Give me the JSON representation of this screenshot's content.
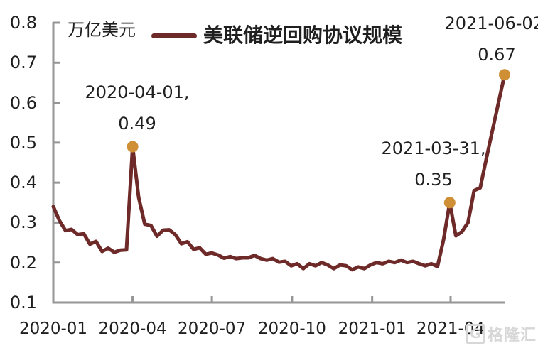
{
  "unit_label": "万亿美元",
  "legend": {
    "series_label": "美联储逆回购协议规模"
  },
  "annotations": [
    {
      "date": "2020-04-01,",
      "value": "0.49"
    },
    {
      "date": "2021-03-31,",
      "value": "0.35"
    },
    {
      "date": "2021-06-02,",
      "value": "0.67"
    }
  ],
  "watermark": {
    "logo": "G",
    "text": "格隆汇"
  },
  "colors": {
    "line": "#6E2A28",
    "marker": "#CF8F35",
    "axis": "#969696"
  },
  "chart_data": {
    "type": "line",
    "title": "美联储逆回购协议规模",
    "ylabel": "万亿美元",
    "ylim": [
      0.1,
      0.8
    ],
    "yticks": [
      0.8,
      0.7,
      0.6,
      0.5,
      0.4,
      0.3,
      0.2,
      0.1
    ],
    "xticks": [
      {
        "label": "2020-01",
        "date": "2020-01-01"
      },
      {
        "label": "2020-04",
        "date": "2020-04-01"
      },
      {
        "label": "2020-07",
        "date": "2020-07-01"
      },
      {
        "label": "2020-10",
        "date": "2020-10-01"
      },
      {
        "label": "2021-01",
        "date": "2021-01-01"
      },
      {
        "label": "2021-04",
        "date": "2021-04-01"
      }
    ],
    "grid": false,
    "legend_position": "top-center",
    "x": [
      "2020-01-01",
      "2020-01-08",
      "2020-01-15",
      "2020-01-22",
      "2020-01-29",
      "2020-02-05",
      "2020-02-12",
      "2020-02-19",
      "2020-02-26",
      "2020-03-04",
      "2020-03-11",
      "2020-03-18",
      "2020-03-25",
      "2020-04-01",
      "2020-04-08",
      "2020-04-15",
      "2020-04-22",
      "2020-04-29",
      "2020-05-06",
      "2020-05-13",
      "2020-05-20",
      "2020-05-27",
      "2020-06-03",
      "2020-06-10",
      "2020-06-17",
      "2020-06-24",
      "2020-07-01",
      "2020-07-08",
      "2020-07-15",
      "2020-07-22",
      "2020-07-29",
      "2020-08-05",
      "2020-08-12",
      "2020-08-19",
      "2020-08-26",
      "2020-09-02",
      "2020-09-09",
      "2020-09-16",
      "2020-09-23",
      "2020-09-30",
      "2020-10-07",
      "2020-10-14",
      "2020-10-21",
      "2020-10-28",
      "2020-11-04",
      "2020-11-11",
      "2020-11-18",
      "2020-11-25",
      "2020-12-02",
      "2020-12-09",
      "2020-12-16",
      "2020-12-23",
      "2020-12-30",
      "2021-01-06",
      "2021-01-13",
      "2021-01-20",
      "2021-01-27",
      "2021-02-03",
      "2021-02-10",
      "2021-02-17",
      "2021-02-24",
      "2021-03-03",
      "2021-03-10",
      "2021-03-17",
      "2021-03-24",
      "2021-03-31",
      "2021-04-07",
      "2021-04-14",
      "2021-04-21",
      "2021-04-28",
      "2021-05-05",
      "2021-05-12",
      "2021-05-19",
      "2021-05-26",
      "2021-06-02"
    ],
    "values": [
      0.34,
      0.305,
      0.28,
      0.283,
      0.27,
      0.272,
      0.246,
      0.253,
      0.228,
      0.236,
      0.226,
      0.231,
      0.232,
      0.49,
      0.363,
      0.296,
      0.293,
      0.266,
      0.281,
      0.282,
      0.27,
      0.247,
      0.252,
      0.233,
      0.237,
      0.221,
      0.224,
      0.219,
      0.211,
      0.215,
      0.21,
      0.212,
      0.212,
      0.218,
      0.21,
      0.206,
      0.21,
      0.201,
      0.203,
      0.192,
      0.197,
      0.185,
      0.197,
      0.192,
      0.2,
      0.194,
      0.185,
      0.194,
      0.192,
      0.182,
      0.189,
      0.185,
      0.194,
      0.2,
      0.197,
      0.203,
      0.2,
      0.206,
      0.2,
      0.203,
      0.197,
      0.192,
      0.197,
      0.19,
      0.258,
      0.35,
      0.267,
      0.277,
      0.3,
      0.38,
      0.387,
      0.46,
      0.53,
      0.6,
      0.67
    ],
    "annotated_points": [
      {
        "date": "2020-04-01",
        "value": 0.49
      },
      {
        "date": "2021-03-31",
        "value": 0.35
      },
      {
        "date": "2021-06-02",
        "value": 0.67
      }
    ]
  }
}
